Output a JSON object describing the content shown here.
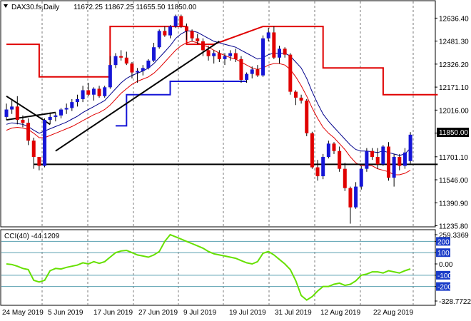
{
  "header": {
    "symbol": "DAX30.fs,Daily",
    "ohlc": "11672.25 11867.25 11655.50 11850.00"
  },
  "last_price_label": "11850.00",
  "cci_header": "CCI(40) -44.1209",
  "colors": {
    "bull": "#1515d6",
    "bear": "#e00000",
    "ma_blue": "#00008b",
    "ma_red": "#e00000",
    "cci": "#66e000",
    "cci_level": "#5aa0b0",
    "trendline": "#000000",
    "grid": "#7a7a7a",
    "label_box_blue": "#1a3cc8"
  },
  "chart_data": [
    {
      "type": "candlestick",
      "title": "DAX30.fs,Daily",
      "ylim": [
        11235.8,
        12660
      ],
      "y_ticks": [
        "12636.40",
        "12481.30",
        "12326.20",
        "12171.10",
        "12016.00",
        "11860.90",
        "11701.10",
        "11546.00",
        "11390.90",
        "11235.80"
      ],
      "x_ticks": [
        "24 May 2019",
        "5 Jun 2019",
        "17 Jun 2019",
        "27 Jun 2019",
        "9 Jul 2019",
        "19 Jul 2019",
        "31 Jul 2019",
        "12 Aug 2019",
        "22 Aug 2019"
      ],
      "ohlc": [
        [
          11970,
          12060,
          11950,
          12020
        ],
        [
          12020,
          12090,
          11990,
          12040
        ],
        [
          12040,
          12110,
          11920,
          11950
        ],
        [
          11950,
          11980,
          11900,
          11930
        ],
        [
          11930,
          11960,
          11780,
          11810
        ],
        [
          11810,
          11830,
          11620,
          11700
        ],
        [
          11700,
          11700,
          11610,
          11640
        ],
        [
          11640,
          11960,
          11630,
          11950
        ],
        [
          11950,
          12000,
          11920,
          11970
        ],
        [
          11970,
          12000,
          11940,
          11980
        ],
        [
          11980,
          12030,
          11960,
          12020
        ],
        [
          12020,
          12060,
          11990,
          12030
        ],
        [
          12030,
          12090,
          12010,
          12070
        ],
        [
          12070,
          12120,
          12040,
          12090
        ],
        [
          12090,
          12180,
          12070,
          12150
        ],
        [
          12150,
          12200,
          12110,
          12120
        ],
        [
          12120,
          12170,
          12080,
          12160
        ],
        [
          12160,
          12180,
          12100,
          12110
        ],
        [
          12110,
          12180,
          12100,
          12170
        ],
        [
          12170,
          12380,
          12160,
          12320
        ],
        [
          12320,
          12400,
          12300,
          12380
        ],
        [
          12380,
          12420,
          12350,
          12370
        ],
        [
          12370,
          12410,
          12320,
          12330
        ],
        [
          12330,
          12340,
          12230,
          12270
        ],
        [
          12270,
          12300,
          12200,
          12280
        ],
        [
          12280,
          12320,
          12250,
          12300
        ],
        [
          12300,
          12360,
          12290,
          12350
        ],
        [
          12350,
          12470,
          12340,
          12440
        ],
        [
          12440,
          12560,
          12430,
          12550
        ],
        [
          12550,
          12580,
          12510,
          12520
        ],
        [
          12520,
          12590,
          12500,
          12580
        ],
        [
          12580,
          12660,
          12570,
          12650
        ],
        [
          12650,
          12660,
          12570,
          12580
        ],
        [
          12580,
          12600,
          12490,
          12550
        ],
        [
          12550,
          12560,
          12480,
          12500
        ],
        [
          12500,
          12530,
          12460,
          12480
        ],
        [
          12480,
          12500,
          12380,
          12420
        ],
        [
          12420,
          12450,
          12350,
          12380
        ],
        [
          12380,
          12420,
          12330,
          12400
        ],
        [
          12400,
          12420,
          12340,
          12360
        ],
        [
          12360,
          12400,
          12320,
          12380
        ],
        [
          12380,
          12420,
          12350,
          12400
        ],
        [
          12400,
          12430,
          12340,
          12360
        ],
        [
          12360,
          12380,
          12200,
          12220
        ],
        [
          12220,
          12270,
          12200,
          12260
        ],
        [
          12260,
          12310,
          12230,
          12290
        ],
        [
          12290,
          12320,
          12240,
          12250
        ],
        [
          12250,
          12520,
          12240,
          12500
        ],
        [
          12500,
          12570,
          12480,
          12540
        ],
        [
          12540,
          12580,
          12360,
          12370
        ],
        [
          12370,
          12450,
          12330,
          12430
        ],
        [
          12430,
          12440,
          12370,
          12390
        ],
        [
          12390,
          12400,
          12120,
          12140
        ],
        [
          12140,
          12150,
          12050,
          12100
        ],
        [
          12100,
          12120,
          12060,
          12080
        ],
        [
          12080,
          12090,
          11840,
          11860
        ],
        [
          11860,
          11870,
          11620,
          11630
        ],
        [
          11630,
          11680,
          11540,
          11570
        ],
        [
          11570,
          11720,
          11550,
          11700
        ],
        [
          11700,
          11810,
          11690,
          11790
        ],
        [
          11790,
          11800,
          11720,
          11740
        ],
        [
          11740,
          11770,
          11600,
          11620
        ],
        [
          11620,
          11660,
          11470,
          11490
        ],
        [
          11490,
          11500,
          11250,
          11360
        ],
        [
          11360,
          11530,
          11350,
          11500
        ],
        [
          11500,
          11640,
          11480,
          11620
        ],
        [
          11620,
          11760,
          11600,
          11740
        ],
        [
          11740,
          11760,
          11680,
          11700
        ],
        [
          11700,
          11760,
          11620,
          11650
        ],
        [
          11650,
          11780,
          11640,
          11770
        ],
        [
          11770,
          11800,
          11540,
          11560
        ],
        [
          11560,
          11720,
          11500,
          11700
        ],
        [
          11700,
          11720,
          11610,
          11640
        ],
        [
          11640,
          11760,
          11620,
          11730
        ],
        [
          11672.25,
          11867.25,
          11655.5,
          11850
        ]
      ],
      "ma_blue": [
        11920,
        11930,
        11925,
        11920,
        11905,
        11880,
        11860,
        11875,
        11890,
        11905,
        11920,
        11935,
        11955,
        11975,
        12000,
        12020,
        12040,
        12060,
        12080,
        12120,
        12160,
        12200,
        12230,
        12250,
        12265,
        12280,
        12300,
        12330,
        12370,
        12410,
        12450,
        12500,
        12530,
        12550,
        12550,
        12540,
        12520,
        12500,
        12480,
        12470,
        12460,
        12450,
        12440,
        12420,
        12400,
        12380,
        12360,
        12370,
        12390,
        12400,
        12400,
        12400,
        12380,
        12340,
        12300,
        12230,
        12140,
        12060,
        11990,
        11940,
        11900,
        11860,
        11820,
        11780,
        11750,
        11740,
        11740,
        11735,
        11730,
        11740,
        11730,
        11720,
        11710,
        11720,
        11760
      ],
      "ma_red": [
        11880,
        11895,
        11900,
        11895,
        11885,
        11860,
        11830,
        11830,
        11845,
        11860,
        11875,
        11890,
        11905,
        11925,
        11945,
        11965,
        11985,
        12000,
        12020,
        12050,
        12090,
        12130,
        12160,
        12190,
        12210,
        12225,
        12240,
        12265,
        12300,
        12340,
        12380,
        12420,
        12450,
        12470,
        12480,
        12470,
        12455,
        12440,
        12420,
        12400,
        12385,
        12370,
        12360,
        12340,
        12320,
        12300,
        12290,
        12300,
        12320,
        12330,
        12330,
        12320,
        12290,
        12240,
        12180,
        12110,
        12030,
        11960,
        11900,
        11860,
        11830,
        11790,
        11750,
        11700,
        11660,
        11640,
        11640,
        11640,
        11620,
        11610,
        11600,
        11580,
        11580,
        11590,
        11610
      ],
      "step_red": [
        [
          0,
          12460
        ],
        [
          6,
          12460
        ],
        [
          6,
          12240
        ],
        [
          19,
          12240
        ],
        [
          19,
          12580
        ],
        [
          33,
          12580
        ],
        [
          33,
          12460
        ],
        [
          38,
          12460
        ],
        [
          38,
          12460
        ],
        [
          47,
          12580
        ],
        [
          58,
          12580
        ],
        [
          58,
          12300
        ],
        [
          69,
          12300
        ],
        [
          69,
          12120
        ],
        [
          79,
          12120
        ]
      ],
      "step_blue": [
        [
          20,
          11910
        ],
        [
          22,
          11910
        ],
        [
          22,
          12120
        ],
        [
          30,
          12120
        ],
        [
          30,
          12210
        ],
        [
          44,
          12210
        ]
      ],
      "trendlines": [
        {
          "from": [
            0,
            12110
          ],
          "to": [
            8,
            11920
          ]
        },
        {
          "from": [
            0,
            11950
          ],
          "to": [
            9,
            12000
          ]
        },
        {
          "from": [
            9,
            11740
          ],
          "to": [
            39,
            12480
          ]
        },
        {
          "from": [
            5,
            11650
          ],
          "to": [
            79,
            11650
          ]
        }
      ]
    },
    {
      "type": "line",
      "title": "CCI(40) -44.1209",
      "ylim": [
        -328.7722,
        259.3369
      ],
      "y_ticks": [
        "259.3369",
        "200",
        "100",
        "0.00",
        "-100",
        "-200",
        "-328.7722"
      ],
      "levels": [
        200,
        100,
        -100,
        -200
      ],
      "values": [
        0,
        -5,
        -20,
        -40,
        -50,
        -145,
        -160,
        -145,
        -60,
        -40,
        -45,
        -30,
        -20,
        -10,
        10,
        0,
        20,
        5,
        20,
        60,
        100,
        115,
        120,
        100,
        80,
        70,
        60,
        80,
        110,
        200,
        260,
        240,
        220,
        200,
        180,
        160,
        140,
        110,
        90,
        80,
        70,
        60,
        50,
        30,
        10,
        0,
        20,
        95,
        110,
        80,
        40,
        0,
        -50,
        -150,
        -280,
        -320,
        -290,
        -240,
        -200,
        -200,
        -180,
        -170,
        -190,
        -180,
        -150,
        -100,
        -90,
        -70,
        -70,
        -80,
        -60,
        -70,
        -80,
        -60,
        -44
      ]
    }
  ]
}
